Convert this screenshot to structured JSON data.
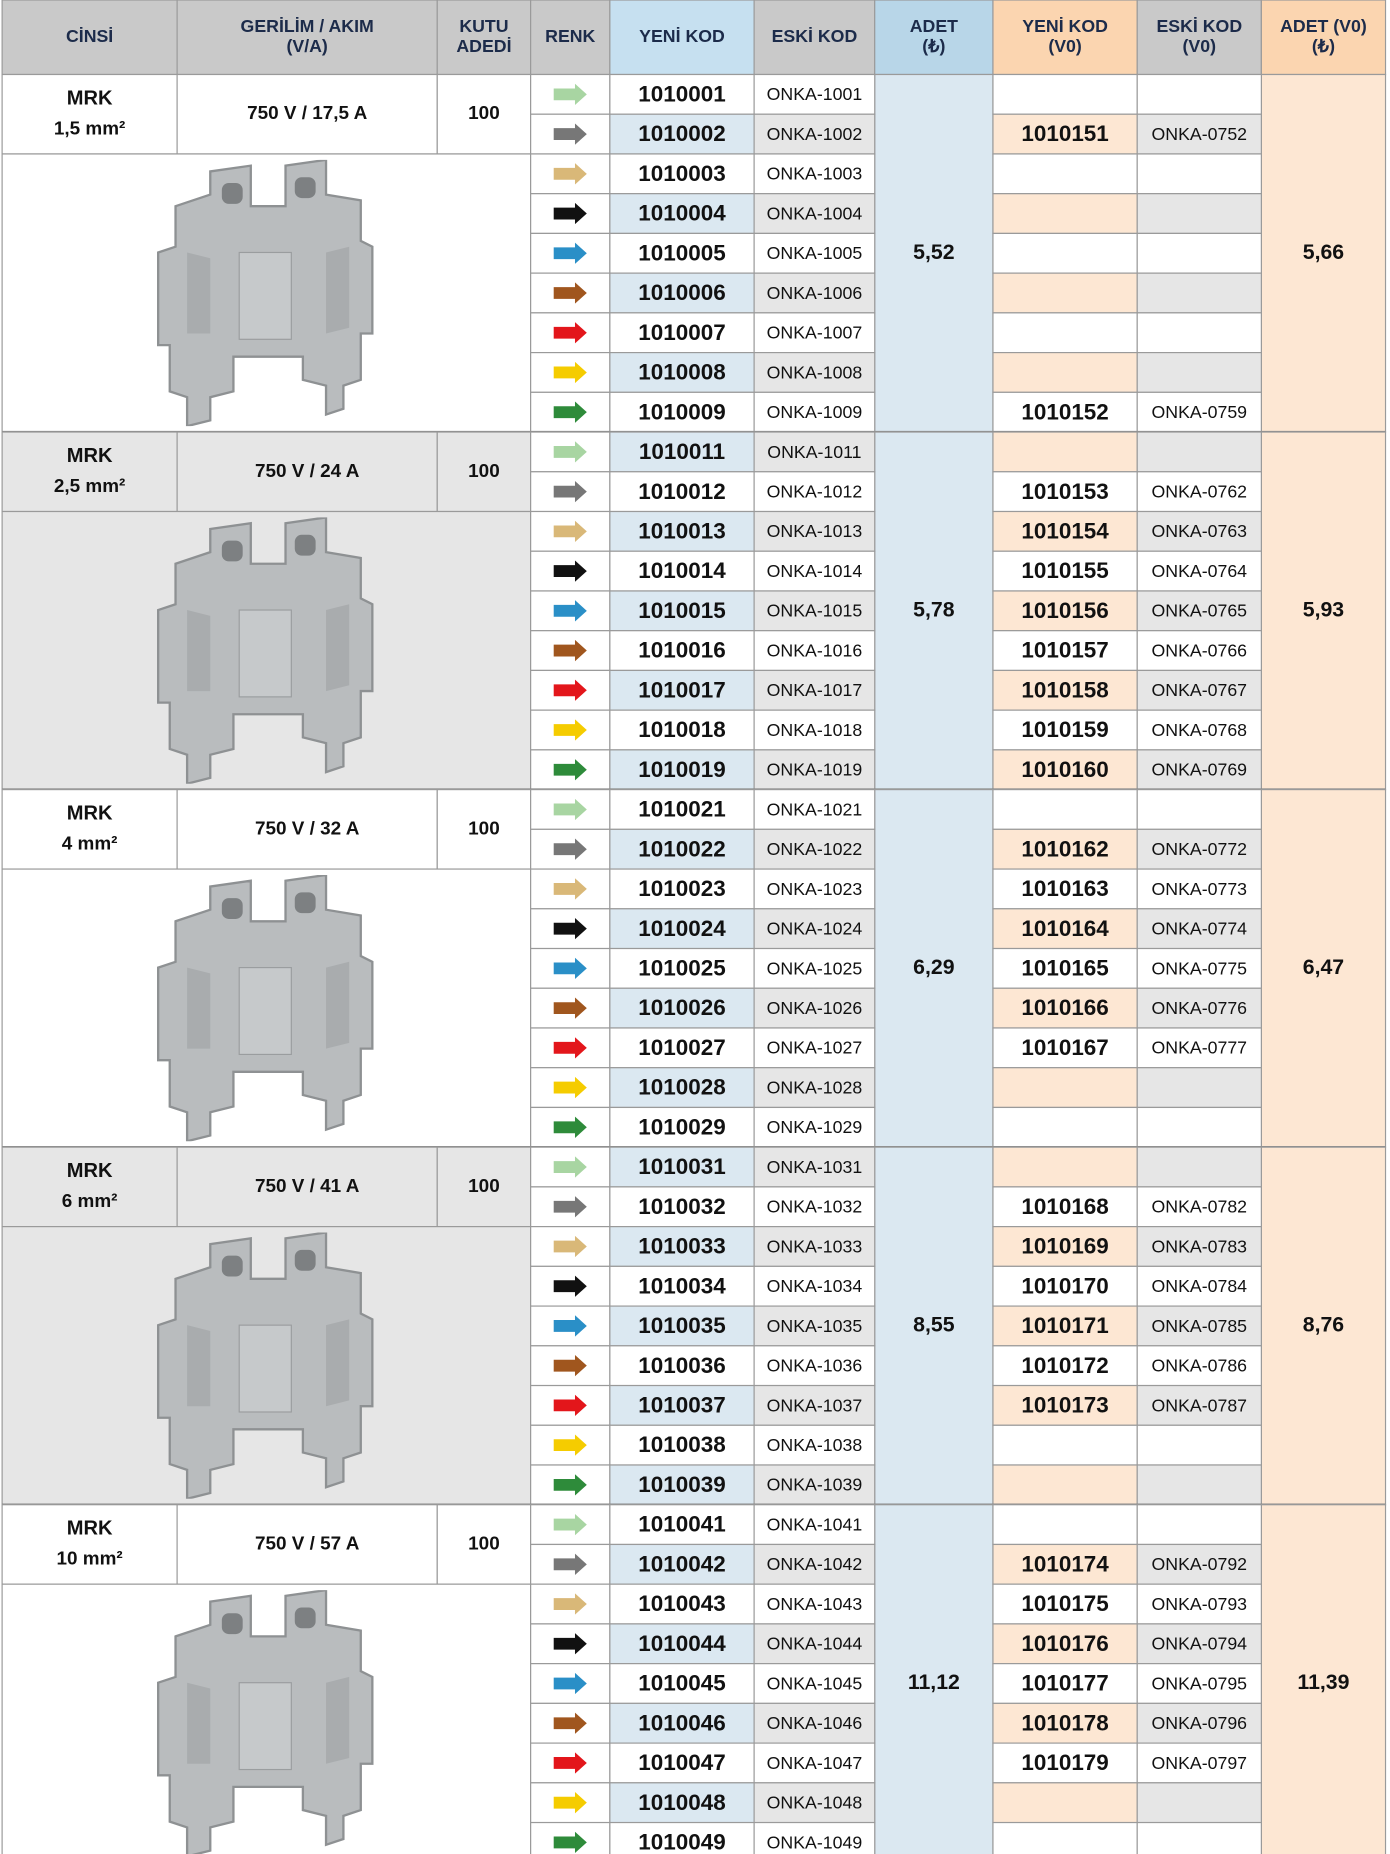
{
  "header": [
    [
      "CİNSİ"
    ],
    [
      "GERİLİM / AKIM",
      "(V/A)"
    ],
    [
      "KUTU",
      "ADEDİ"
    ],
    [
      "RENK"
    ],
    [
      "YENİ KOD"
    ],
    [
      "ESKİ KOD"
    ],
    [
      "ADET",
      "(₺)"
    ],
    [
      "YENİ KOD",
      "(V0)"
    ],
    [
      "ESKİ KOD",
      "(V0)"
    ],
    [
      "ADET (V0)",
      "(₺)"
    ]
  ],
  "groups": [
    {
      "name": "MRK",
      "size": "1,5 mm²",
      "rating": "750 V / 17,5 A",
      "box": "100",
      "price": "5,52",
      "price_v0": "5,66",
      "rows": [
        [
          "1010001",
          "ONKA-1001",
          null,
          null
        ],
        [
          "1010002",
          "ONKA-1002",
          "1010151",
          "ONKA-0752"
        ],
        [
          "1010003",
          "ONKA-1003",
          null,
          null
        ],
        [
          "1010004",
          "ONKA-1004",
          null,
          null
        ],
        [
          "1010005",
          "ONKA-1005",
          null,
          null
        ],
        [
          "1010006",
          "ONKA-1006",
          null,
          null
        ],
        [
          "1010007",
          "ONKA-1007",
          null,
          null
        ],
        [
          "1010008",
          "ONKA-1008",
          null,
          null
        ],
        [
          "1010009",
          "ONKA-1009",
          "1010152",
          "ONKA-0759"
        ]
      ]
    },
    {
      "name": "MRK",
      "size": "2,5 mm²",
      "rating": "750 V / 24 A",
      "box": "100",
      "price": "5,78",
      "price_v0": "5,93",
      "rows": [
        [
          "1010011",
          "ONKA-1011",
          null,
          null
        ],
        [
          "1010012",
          "ONKA-1012",
          "1010153",
          "ONKA-0762"
        ],
        [
          "1010013",
          "ONKA-1013",
          "1010154",
          "ONKA-0763"
        ],
        [
          "1010014",
          "ONKA-1014",
          "1010155",
          "ONKA-0764"
        ],
        [
          "1010015",
          "ONKA-1015",
          "1010156",
          "ONKA-0765"
        ],
        [
          "1010016",
          "ONKA-1016",
          "1010157",
          "ONKA-0766"
        ],
        [
          "1010017",
          "ONKA-1017",
          "1010158",
          "ONKA-0767"
        ],
        [
          "1010018",
          "ONKA-1018",
          "1010159",
          "ONKA-0768"
        ],
        [
          "1010019",
          "ONKA-1019",
          "1010160",
          "ONKA-0769"
        ]
      ]
    },
    {
      "name": "MRK",
      "size": "4 mm²",
      "rating": "750 V / 32 A",
      "box": "100",
      "price": "6,29",
      "price_v0": "6,47",
      "rows": [
        [
          "1010021",
          "ONKA-1021",
          null,
          null
        ],
        [
          "1010022",
          "ONKA-1022",
          "1010162",
          "ONKA-0772"
        ],
        [
          "1010023",
          "ONKA-1023",
          "1010163",
          "ONKA-0773"
        ],
        [
          "1010024",
          "ONKA-1024",
          "1010164",
          "ONKA-0774"
        ],
        [
          "1010025",
          "ONKA-1025",
          "1010165",
          "ONKA-0775"
        ],
        [
          "1010026",
          "ONKA-1026",
          "1010166",
          "ONKA-0776"
        ],
        [
          "1010027",
          "ONKA-1027",
          "1010167",
          "ONKA-0777"
        ],
        [
          "1010028",
          "ONKA-1028",
          null,
          null
        ],
        [
          "1010029",
          "ONKA-1029",
          null,
          null
        ]
      ]
    },
    {
      "name": "MRK",
      "size": "6 mm²",
      "rating": "750 V / 41 A",
      "box": "100",
      "price": "8,55",
      "price_v0": "8,76",
      "rows": [
        [
          "1010031",
          "ONKA-1031",
          null,
          null
        ],
        [
          "1010032",
          "ONKA-1032",
          "1010168",
          "ONKA-0782"
        ],
        [
          "1010033",
          "ONKA-1033",
          "1010169",
          "ONKA-0783"
        ],
        [
          "1010034",
          "ONKA-1034",
          "1010170",
          "ONKA-0784"
        ],
        [
          "1010035",
          "ONKA-1035",
          "1010171",
          "ONKA-0785"
        ],
        [
          "1010036",
          "ONKA-1036",
          "1010172",
          "ONKA-0786"
        ],
        [
          "1010037",
          "ONKA-1037",
          "1010173",
          "ONKA-0787"
        ],
        [
          "1010038",
          "ONKA-1038",
          null,
          null
        ],
        [
          "1010039",
          "ONKA-1039",
          null,
          null
        ]
      ]
    },
    {
      "name": "MRK",
      "size": "10 mm²",
      "rating": "750 V / 57 A",
      "box": "100",
      "price": "11,12",
      "price_v0": "11,39",
      "rows": [
        [
          "1010041",
          "ONKA-1041",
          null,
          null
        ],
        [
          "1010042",
          "ONKA-1042",
          "1010174",
          "ONKA-0792"
        ],
        [
          "1010043",
          "ONKA-1043",
          "1010175",
          "ONKA-0793"
        ],
        [
          "1010044",
          "ONKA-1044",
          "1010176",
          "ONKA-0794"
        ],
        [
          "1010045",
          "ONKA-1045",
          "1010177",
          "ONKA-0795"
        ],
        [
          "1010046",
          "ONKA-1046",
          "1010178",
          "ONKA-0796"
        ],
        [
          "1010047",
          "ONKA-1047",
          "1010179",
          "ONKA-0797"
        ],
        [
          "1010048",
          "ONKA-1048",
          null,
          null
        ],
        [
          "1010049",
          "ONKA-1049",
          null,
          null
        ]
      ]
    }
  ]
}
